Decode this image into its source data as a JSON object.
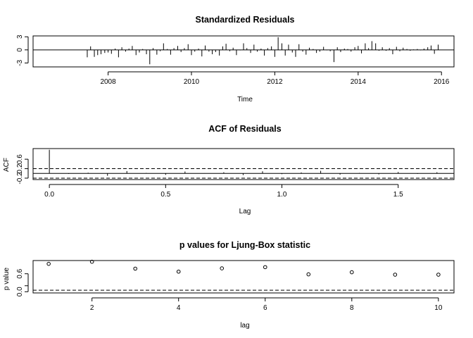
{
  "chart_data": [
    {
      "type": "bar",
      "title": "Standardized Residuals",
      "xlabel": "Time",
      "ylabel": "",
      "xlim": [
        2006.2,
        2016.3
      ],
      "ylim": [
        -3.9,
        3.2
      ],
      "xticks": [
        2008,
        2010,
        2012,
        2014,
        2016
      ],
      "yticks": [
        -3,
        0,
        3
      ],
      "ytick_labels": [
        "-3",
        "0",
        "3"
      ],
      "reference_line": 0,
      "x": [
        2007.5,
        2007.58,
        2007.67,
        2007.75,
        2007.83,
        2007.92,
        2008.0,
        2008.08,
        2008.17,
        2008.25,
        2008.33,
        2008.42,
        2008.5,
        2008.58,
        2008.67,
        2008.75,
        2008.83,
        2008.92,
        2009.0,
        2009.08,
        2009.17,
        2009.25,
        2009.33,
        2009.42,
        2009.5,
        2009.58,
        2009.67,
        2009.75,
        2009.83,
        2009.92,
        2010.0,
        2010.08,
        2010.17,
        2010.25,
        2010.33,
        2010.42,
        2010.5,
        2010.58,
        2010.67,
        2010.75,
        2010.83,
        2010.92,
        2011.0,
        2011.08,
        2011.17,
        2011.25,
        2011.33,
        2011.42,
        2011.5,
        2011.58,
        2011.67,
        2011.75,
        2011.83,
        2011.92,
        2012.0,
        2012.08,
        2012.17,
        2012.25,
        2012.33,
        2012.42,
        2012.5,
        2012.58,
        2012.67,
        2012.75,
        2012.83,
        2012.92,
        2013.0,
        2013.08,
        2013.17,
        2013.25,
        2013.33,
        2013.42,
        2013.5,
        2013.58,
        2013.67,
        2013.75,
        2013.83,
        2013.92,
        2014.0,
        2014.08,
        2014.17,
        2014.25,
        2014.33,
        2014.42,
        2014.5,
        2014.58,
        2014.67,
        2014.75,
        2014.83,
        2014.92,
        2015.0,
        2015.08,
        2015.17,
        2015.25,
        2015.33,
        2015.42,
        2015.5,
        2015.58,
        2015.67,
        2015.75,
        2015.83,
        2015.92
      ],
      "values": [
        -1.7,
        0.8,
        -1.6,
        -1.2,
        -1.0,
        -0.7,
        -0.6,
        -0.9,
        0.3,
        -1.7,
        0.6,
        -0.4,
        0.3,
        0.9,
        -1.2,
        -0.6,
        0.2,
        -1.0,
        -3.3,
        0.4,
        -1.1,
        -0.3,
        1.5,
        0.2,
        -1.1,
        0.4,
        0.9,
        -0.5,
        0.4,
        1.3,
        -1.2,
        -0.4,
        0.3,
        -1.5,
        1.0,
        -0.4,
        -1.0,
        -0.5,
        -1.3,
        0.8,
        1.4,
        -0.3,
        0.5,
        -1.2,
        -0.1,
        1.5,
        0.4,
        -0.7,
        1.2,
        -0.4,
        0.3,
        -1.3,
        0.4,
        0.8,
        -1.6,
        2.9,
        1.5,
        -1.3,
        1.2,
        -0.6,
        -1.6,
        1.3,
        -0.4,
        -1.1,
        0.5,
        0.2,
        -0.7,
        -0.4,
        0.7,
        -0.1,
        -0.3,
        -2.8,
        0.6,
        -0.5,
        0.3,
        0.2,
        -0.4,
        0.6,
        0.9,
        -0.8,
        1.5,
        0.4,
        2.0,
        1.5,
        -0.2,
        0.6,
        -0.2,
        0.4,
        -1.0,
        0.7,
        -0.3,
        0.5,
        0.2,
        -0.2,
        0.1,
        0.2,
        -0.1,
        0.3,
        0.6,
        1.0,
        -0.9,
        1.2
      ]
    },
    {
      "type": "bar",
      "title": "ACF of Residuals",
      "xlabel": "Lag",
      "ylabel": "ACF",
      "xlim": [
        -0.07,
        1.74
      ],
      "ylim": [
        -0.26,
        1.05
      ],
      "xticks": [
        0.0,
        0.5,
        1.0,
        1.5
      ],
      "xtick_labels": [
        "0.0",
        "0.5",
        "1.0",
        "1.5"
      ],
      "yticks": [
        -0.2,
        0.2,
        0.6
      ],
      "ytick_labels": [
        "-0.2",
        "0.2",
        "0.6"
      ],
      "reference_line": 0,
      "confidence_bounds": [
        0.2,
        -0.2
      ],
      "x": [
        0.0,
        0.0833,
        0.1667,
        0.25,
        0.3333,
        0.4167,
        0.5,
        0.5833,
        0.6667,
        0.75,
        0.8333,
        0.9167,
        1.0,
        1.0833,
        1.1667,
        1.25,
        1.3333,
        1.4167,
        1.5,
        1.5833,
        1.6667
      ],
      "values": [
        1.0,
        -0.02,
        0.03,
        -0.1,
        0.1,
        0.02,
        -0.06,
        0.08,
        0.01,
        0.05,
        -0.07,
        0.09,
        -0.03,
        0.04,
        0.11,
        -0.05,
        0.02,
        -0.04,
        0.06,
        -0.02,
        0.05
      ]
    },
    {
      "type": "scatter",
      "title": "p values for Ljung-Box statistic",
      "xlabel": "lag",
      "ylabel": "p value",
      "xlim": [
        0.64,
        10.36
      ],
      "ylim": [
        -0.04,
        1.04
      ],
      "xticks": [
        2,
        4,
        6,
        8,
        10
      ],
      "yticks": [
        0.0,
        0.2,
        0.6
      ],
      "ytick_labels": [
        "0.0",
        "",
        "0.6"
      ],
      "reference_line": 0.05,
      "x": [
        1,
        2,
        3,
        4,
        5,
        6,
        7,
        8,
        9,
        10
      ],
      "values": [
        0.93,
        1.0,
        0.77,
        0.67,
        0.78,
        0.82,
        0.58,
        0.65,
        0.57,
        0.57
      ]
    }
  ]
}
